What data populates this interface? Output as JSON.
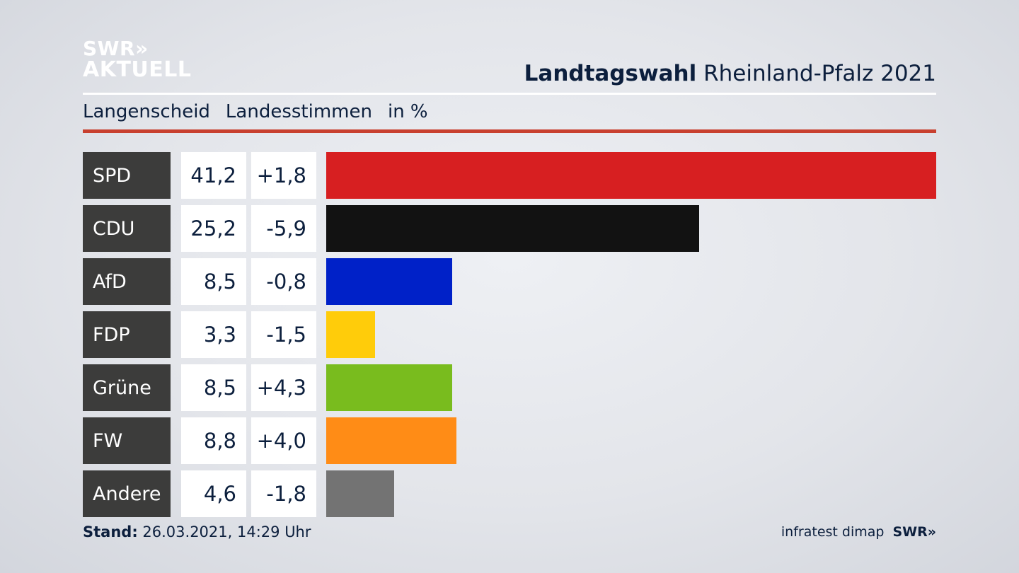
{
  "logo": {
    "line1": "SWR»",
    "line2": "AKTUELL"
  },
  "header": {
    "title_bold": "Landtagswahl",
    "title_regular": "Rheinland-Pfalz 2021"
  },
  "subtitle": {
    "place": "Langenscheid",
    "vote": "Landesstimmen",
    "unit": "in %"
  },
  "footer": {
    "stand_label": "Stand:",
    "stand_value": "26.03.2021, 14:29 Uhr",
    "source": "infratest dimap",
    "brand": "SWR»"
  },
  "chart_data": {
    "type": "bar",
    "categories": [
      "SPD",
      "CDU",
      "AfD",
      "FDP",
      "Grüne",
      "FW",
      "Andere"
    ],
    "values": [
      41.2,
      25.2,
      8.5,
      3.3,
      8.5,
      8.8,
      4.6
    ],
    "value_labels": [
      "41,2",
      "25,2",
      "8,5",
      "3,3",
      "8,5",
      "8,8",
      "4,6"
    ],
    "diff_labels": [
      "+1,8",
      "-5,9",
      "-0,8",
      "-1,5",
      "+4,3",
      "+4,0",
      "-1,8"
    ],
    "colors": [
      "#d71f21",
      "#121212",
      "#0021c8",
      "#ffcc0a",
      "#79bc1e",
      "#ff8c16",
      "#737373"
    ],
    "xlim": [
      0,
      41.2
    ]
  }
}
